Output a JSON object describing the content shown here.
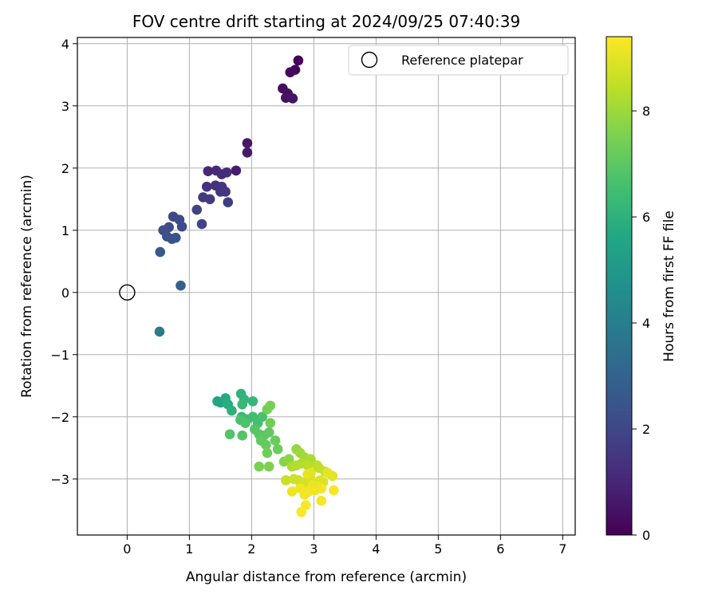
{
  "chart_data": {
    "type": "scatter",
    "title": "FOV centre drift starting at 2024/09/25 07:40:39",
    "xlabel": "Angular distance from reference (arcmin)",
    "ylabel": "Rotation from reference (arcmin)",
    "xlim": [
      -0.8,
      7.2
    ],
    "ylim": [
      -3.9,
      4.1
    ],
    "x_ticks": [
      0,
      1,
      2,
      3,
      4,
      5,
      6,
      7
    ],
    "y_ticks": [
      -3,
      -2,
      -1,
      0,
      1,
      2,
      3,
      4
    ],
    "grid": true,
    "legend_position": "top-right",
    "reference": {
      "name": "Reference platepar",
      "x": 0,
      "y": 0
    },
    "colorbar": {
      "label": "Hours from first FF file",
      "colormap": "viridis",
      "range": [
        0,
        9.4
      ],
      "ticks": [
        0,
        2,
        4,
        6,
        8
      ]
    },
    "series": [
      {
        "values": [
          [
            2.75,
            3.73
          ],
          [
            2.7,
            3.58
          ],
          [
            2.62,
            3.54
          ],
          [
            2.5,
            3.28
          ],
          [
            2.58,
            3.2
          ],
          [
            2.55,
            3.13
          ],
          [
            2.66,
            3.12
          ],
          [
            1.93,
            2.4
          ],
          [
            1.93,
            2.25
          ],
          [
            1.75,
            1.96
          ],
          [
            1.3,
            1.95
          ],
          [
            1.43,
            1.96
          ],
          [
            1.52,
            1.9
          ],
          [
            1.6,
            1.93
          ],
          [
            1.28,
            1.7
          ],
          [
            1.42,
            1.72
          ],
          [
            1.52,
            1.7
          ],
          [
            1.5,
            1.62
          ],
          [
            1.58,
            1.62
          ],
          [
            1.22,
            1.53
          ],
          [
            1.33,
            1.5
          ],
          [
            1.62,
            1.45
          ],
          [
            1.12,
            1.33
          ],
          [
            0.74,
            1.22
          ],
          [
            0.84,
            1.17
          ],
          [
            0.67,
            1.05
          ],
          [
            0.88,
            1.06
          ],
          [
            0.58,
            1.0
          ],
          [
            0.64,
            0.9
          ],
          [
            0.72,
            0.86
          ],
          [
            0.78,
            0.88
          ],
          [
            1.2,
            1.1
          ],
          [
            0.53,
            0.65
          ],
          [
            0.86,
            0.11
          ],
          [
            0.52,
            -0.63
          ],
          [
            1.45,
            -1.75
          ],
          [
            1.5,
            -1.77
          ],
          [
            1.58,
            -1.7
          ],
          [
            1.62,
            -1.8
          ],
          [
            1.68,
            -1.9
          ],
          [
            1.83,
            -1.63
          ],
          [
            1.88,
            -1.72
          ],
          [
            2.02,
            -1.75
          ],
          [
            1.85,
            -1.8
          ],
          [
            1.84,
            -2.0
          ],
          [
            1.93,
            -2.04
          ],
          [
            2.02,
            -2.0
          ],
          [
            2.1,
            -2.1
          ],
          [
            2.17,
            -2.0
          ],
          [
            1.82,
            -2.05
          ],
          [
            1.9,
            -2.1
          ],
          [
            1.65,
            -2.28
          ],
          [
            1.85,
            -2.3
          ],
          [
            2.05,
            -2.2
          ],
          [
            2.12,
            -2.28
          ],
          [
            2.2,
            -2.3
          ],
          [
            2.28,
            -2.25
          ],
          [
            2.15,
            -2.38
          ],
          [
            2.23,
            -2.45
          ],
          [
            2.38,
            -2.38
          ],
          [
            2.42,
            -2.52
          ],
          [
            2.25,
            -2.58
          ],
          [
            2.3,
            -2.1
          ],
          [
            2.25,
            -1.88
          ],
          [
            2.3,
            -1.82
          ],
          [
            2.12,
            -2.8
          ],
          [
            2.28,
            -2.8
          ],
          [
            2.52,
            -2.72
          ],
          [
            2.6,
            -2.68
          ],
          [
            2.72,
            -2.52
          ],
          [
            2.78,
            -2.58
          ],
          [
            2.85,
            -2.65
          ],
          [
            2.95,
            -2.68
          ],
          [
            2.65,
            -2.8
          ],
          [
            2.72,
            -2.78
          ],
          [
            2.8,
            -2.75
          ],
          [
            2.9,
            -2.78
          ],
          [
            3.05,
            -2.78
          ],
          [
            3.08,
            -2.82
          ],
          [
            3.18,
            -2.88
          ],
          [
            2.55,
            -3.02
          ],
          [
            2.68,
            -3.0
          ],
          [
            2.75,
            -3.02
          ],
          [
            2.82,
            -3.05
          ],
          [
            2.88,
            -3.08
          ],
          [
            2.95,
            -3.0
          ],
          [
            3.1,
            -3.02
          ],
          [
            3.15,
            -3.05
          ],
          [
            3.3,
            -2.95
          ],
          [
            3.22,
            -2.9
          ],
          [
            2.9,
            -2.92
          ],
          [
            2.98,
            -3.1
          ],
          [
            3.05,
            -3.12
          ],
          [
            2.65,
            -3.2
          ],
          [
            2.78,
            -3.15
          ],
          [
            2.92,
            -3.2
          ],
          [
            3.02,
            -3.18
          ],
          [
            3.12,
            -3.15
          ],
          [
            2.85,
            -3.25
          ],
          [
            2.88,
            -3.22
          ],
          [
            3.12,
            -3.35
          ],
          [
            3.32,
            -3.18
          ],
          [
            2.87,
            -3.42
          ],
          [
            2.8,
            -3.53
          ],
          [
            2.95,
            -2.9
          ]
        ],
        "hours": [
          0.05,
          0.15,
          0.25,
          0.35,
          0.4,
          0.45,
          0.5,
          0.6,
          0.65,
          0.75,
          1.05,
          1.1,
          1.15,
          1.2,
          1.3,
          1.35,
          1.4,
          1.45,
          1.5,
          1.55,
          1.6,
          1.65,
          1.85,
          2.05,
          2.1,
          2.15,
          2.2,
          2.25,
          2.3,
          2.35,
          2.4,
          1.9,
          2.6,
          2.9,
          3.9,
          5.4,
          5.5,
          5.7,
          5.8,
          5.95,
          6.05,
          6.1,
          6.2,
          6.25,
          6.3,
          6.4,
          6.5,
          6.6,
          6.65,
          6.7,
          6.75,
          6.8,
          6.85,
          6.9,
          6.95,
          7.0,
          7.05,
          7.1,
          7.15,
          7.2,
          7.25,
          7.3,
          7.35,
          7.4,
          7.45,
          7.5,
          7.55,
          7.7,
          7.8,
          7.9,
          8.0,
          8.1,
          8.2,
          8.25,
          8.3,
          8.35,
          8.4,
          8.45,
          8.5,
          8.55,
          8.6,
          8.65,
          8.7,
          8.75,
          8.8,
          8.85,
          8.9,
          8.95,
          9.0,
          9.05,
          9.1,
          9.12,
          9.14,
          9.16,
          9.18,
          9.2,
          9.22,
          9.24,
          9.26,
          9.28,
          9.3,
          9.32,
          9.34,
          9.36,
          9.0
        ]
      }
    ]
  }
}
